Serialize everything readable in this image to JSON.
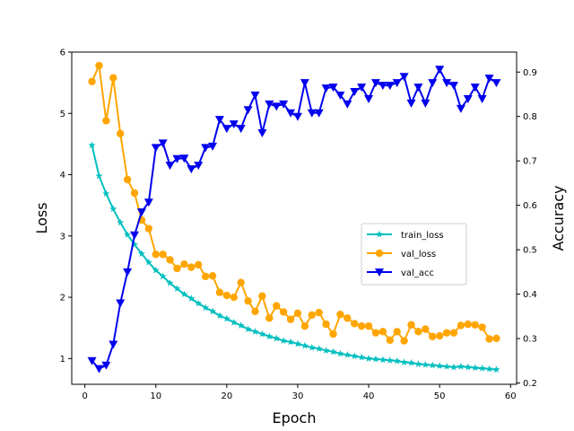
{
  "chart_data": {
    "type": "line",
    "title": "",
    "xlabel": "Epoch",
    "ylabel": "Loss",
    "y2label": "Accuracy",
    "xlim": [
      -1.85,
      60.85
    ],
    "ylim": [
      0.58,
      6.0
    ],
    "y2lim": [
      0.197,
      0.945
    ],
    "xticks": [
      "0",
      "10",
      "20",
      "30",
      "40",
      "50",
      "60"
    ],
    "xtick_values": [
      0,
      10,
      20,
      30,
      40,
      50,
      60
    ],
    "yticks": [
      "1",
      "2",
      "3",
      "4",
      "5",
      "6"
    ],
    "ytick_values": [
      1,
      2,
      3,
      4,
      5,
      6
    ],
    "y2ticks": [
      "0.2",
      "0.3",
      "0.4",
      "0.5",
      "0.6",
      "0.7",
      "0.8",
      "0.9"
    ],
    "y2tick_values": [
      0.2,
      0.3,
      0.4,
      0.5,
      0.6,
      0.7,
      0.8,
      0.9
    ],
    "legend_position": "center-right",
    "grid": false,
    "x": [
      1,
      2,
      3,
      4,
      5,
      6,
      7,
      8,
      9,
      10,
      11,
      12,
      13,
      14,
      15,
      16,
      17,
      18,
      19,
      20,
      21,
      22,
      23,
      24,
      25,
      26,
      27,
      28,
      29,
      30,
      31,
      32,
      33,
      34,
      35,
      36,
      37,
      38,
      39,
      40,
      41,
      42,
      43,
      44,
      45,
      46,
      47,
      48,
      49,
      50,
      51,
      52,
      53,
      54,
      55,
      56,
      57,
      58
    ],
    "series": [
      {
        "name": "train_loss",
        "axis": "left",
        "color": "#00bfbf",
        "marker": "star",
        "values": [
          4.48,
          3.98,
          3.69,
          3.44,
          3.22,
          3.02,
          2.86,
          2.71,
          2.57,
          2.44,
          2.34,
          2.23,
          2.14,
          2.05,
          1.98,
          1.9,
          1.83,
          1.77,
          1.7,
          1.65,
          1.59,
          1.54,
          1.48,
          1.44,
          1.4,
          1.36,
          1.33,
          1.29,
          1.27,
          1.24,
          1.21,
          1.18,
          1.16,
          1.13,
          1.11,
          1.08,
          1.06,
          1.04,
          1.02,
          1.0,
          0.99,
          0.98,
          0.97,
          0.96,
          0.94,
          0.93,
          0.91,
          0.9,
          0.89,
          0.88,
          0.87,
          0.86,
          0.87,
          0.86,
          0.85,
          0.84,
          0.83,
          0.82
        ]
      },
      {
        "name": "val_loss",
        "axis": "left",
        "color": "#ffa500",
        "marker": "circle",
        "values": [
          5.52,
          5.78,
          4.88,
          5.58,
          4.67,
          3.92,
          3.7,
          3.26,
          3.12,
          2.7,
          2.7,
          2.61,
          2.47,
          2.54,
          2.49,
          2.53,
          2.34,
          2.35,
          2.08,
          2.03,
          2.0,
          2.24,
          1.94,
          1.77,
          2.02,
          1.66,
          1.86,
          1.76,
          1.64,
          1.74,
          1.53,
          1.71,
          1.75,
          1.56,
          1.4,
          1.72,
          1.66,
          1.57,
          1.53,
          1.53,
          1.42,
          1.44,
          1.3,
          1.44,
          1.29,
          1.55,
          1.44,
          1.48,
          1.36,
          1.37,
          1.42,
          1.42,
          1.54,
          1.56,
          1.55,
          1.51,
          1.32,
          1.33
        ]
      },
      {
        "name": "val_acc",
        "axis": "right",
        "color": "#0000ee",
        "marker": "triangle-down",
        "values": [
          0.25,
          0.232,
          0.24,
          0.287,
          0.38,
          0.45,
          0.533,
          0.585,
          0.607,
          0.73,
          0.74,
          0.69,
          0.705,
          0.706,
          0.682,
          0.69,
          0.73,
          0.733,
          0.793,
          0.773,
          0.783,
          0.773,
          0.815,
          0.848,
          0.763,
          0.828,
          0.823,
          0.828,
          0.808,
          0.8,
          0.876,
          0.808,
          0.808,
          0.864,
          0.866,
          0.848,
          0.828,
          0.856,
          0.866,
          0.84,
          0.876,
          0.87,
          0.87,
          0.876,
          0.89,
          0.83,
          0.866,
          0.83,
          0.876,
          0.906,
          0.876,
          0.87,
          0.818,
          0.84,
          0.866,
          0.84,
          0.886,
          0.876
        ]
      }
    ]
  }
}
